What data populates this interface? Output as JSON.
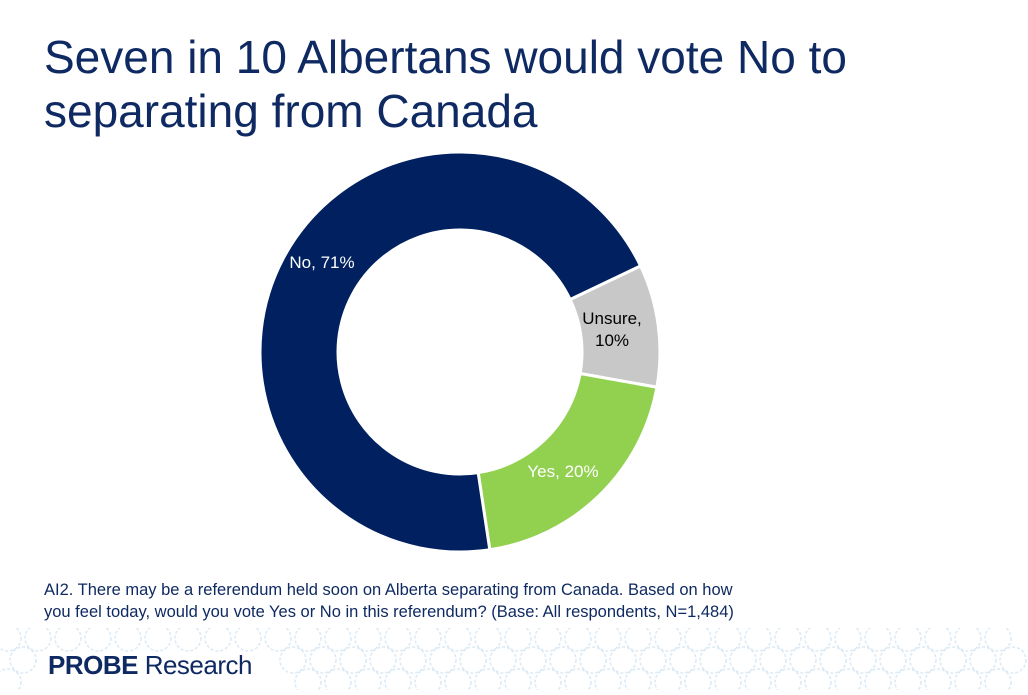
{
  "title": {
    "line1": "Seven in 10 Albertans would vote No to",
    "line2": "separating from Canada"
  },
  "chart_data": {
    "type": "pie",
    "variant": "donut",
    "slices": [
      {
        "label": "Unsure",
        "value": 10,
        "display": [
          "Unsure,",
          "10%"
        ],
        "color": "#c8c8c8",
        "text_color": "#000000"
      },
      {
        "label": "Yes",
        "value": 20,
        "display": [
          "Yes, 20%"
        ],
        "color": "#92d050",
        "text_color": "#ffffff"
      },
      {
        "label": "No",
        "value": 71,
        "display": [
          "No, 71%"
        ],
        "color": "#002060",
        "text_color": "#ffffff"
      }
    ],
    "legend": "none"
  },
  "footnote": {
    "line1": "AI2. There may be a referendum held soon on Alberta separating from Canada. Based on how",
    "line2": "you feel today, would you vote Yes or No in this referendum? (Base: All respondents, N=1,484)"
  },
  "brand": {
    "name_bold": "PROBE",
    "name_rest": " Research",
    "pattern_color": "#dceaf5",
    "text_color": "#0f2a62"
  }
}
